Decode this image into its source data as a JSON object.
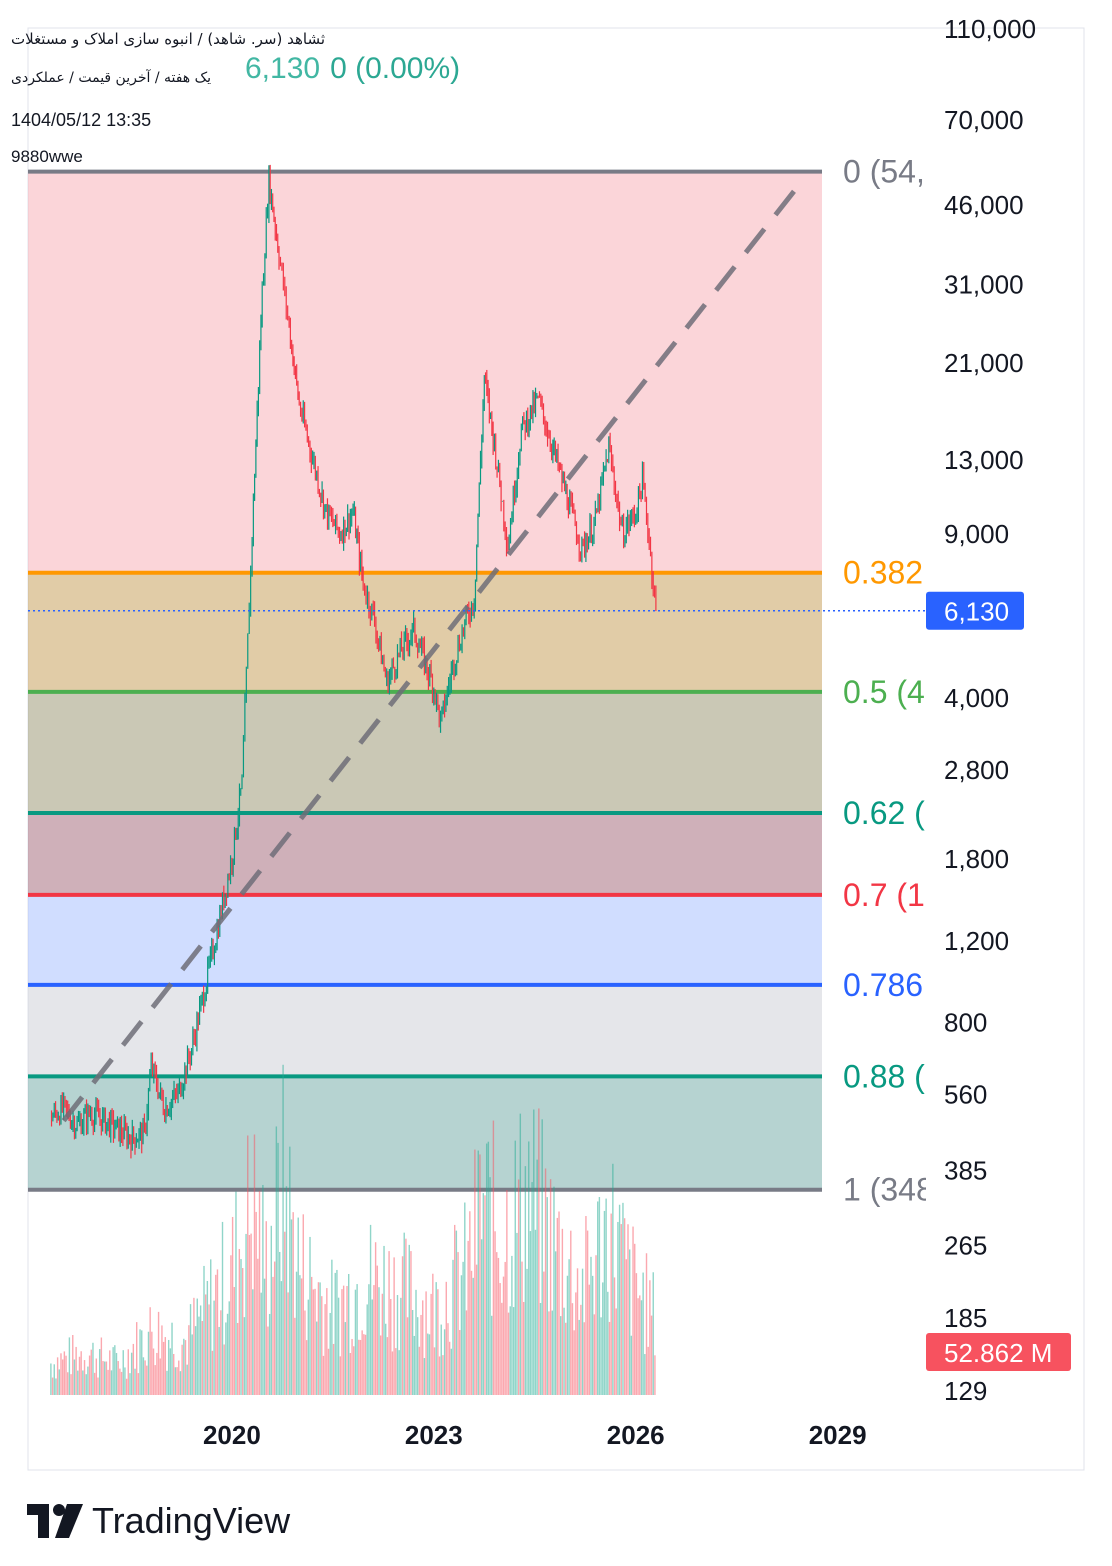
{
  "header": {
    "line1": "ثشاهد (سر. شاهد) / انبوه سازی املاک و مستغلات",
    "line2": "یک هفته / آخرین قیمت / عملکردی",
    "line3": "1404/05/12 13:35",
    "line4": "9880wwe",
    "price": "6,130",
    "change": "0 (0.00%)"
  },
  "colors": {
    "fib_0": "#787b86",
    "fib_0382": "#ff9800",
    "fib_05": "#4caf50",
    "fib_062": "#089981",
    "fib_07": "#f23645",
    "fib_0786": "#2962ff",
    "fib_088": "#089981",
    "fib_1": "#787b86",
    "up": "#089981",
    "down": "#f23645",
    "last_price_bg": "#2962ff",
    "volume_bg": "#f7525f"
  },
  "chart_data": {
    "type": "candlestick",
    "scale": "log",
    "x_ticks": [
      "2020",
      "2023",
      "2026",
      "2029"
    ],
    "y_ticks": [
      "110,000",
      "70,000",
      "46,000",
      "31,000",
      "21,000",
      "13,000",
      "9,000",
      "4,000",
      "2,800",
      "1,800",
      "1,200",
      "800",
      "560",
      "385",
      "265",
      "185",
      "129"
    ],
    "y_tick_values": [
      110000,
      70000,
      46000,
      31000,
      21000,
      13000,
      9000,
      4000,
      2800,
      1800,
      1200,
      800,
      560,
      385,
      265,
      185,
      129
    ],
    "last_price": 6130,
    "last_price_label": "6,130",
    "volume_label": "52.862 M",
    "fib_levels": [
      {
        "ratio": 0,
        "label": "0 (54,",
        "price": 54000
      },
      {
        "ratio": 0.382,
        "label": "0.382",
        "price": 7400
      },
      {
        "ratio": 0.5,
        "label": "0.5 (4",
        "price": 4100
      },
      {
        "ratio": 0.62,
        "label": "0.62 (",
        "price": 2250
      },
      {
        "ratio": 0.7,
        "label": "0.7 (1",
        "price": 1500
      },
      {
        "ratio": 0.786,
        "label": "0.786",
        "price": 960
      },
      {
        "ratio": 0.88,
        "label": "0.88 (",
        "price": 610
      },
      {
        "ratio": 1,
        "label": "1 (348",
        "price": 348
      }
    ],
    "trendline": {
      "from": {
        "date": "2017.5",
        "price": 490
      },
      "to": {
        "date": "2028.4",
        "price": 50000
      }
    },
    "price_series": [
      [
        2017.3,
        500
      ],
      [
        2017.5,
        520
      ],
      [
        2017.7,
        480
      ],
      [
        2017.9,
        510
      ],
      [
        2018.1,
        490
      ],
      [
        2018.3,
        470
      ],
      [
        2018.5,
        450
      ],
      [
        2018.7,
        460
      ],
      [
        2018.8,
        640
      ],
      [
        2019.0,
        520
      ],
      [
        2019.2,
        560
      ],
      [
        2019.4,
        700
      ],
      [
        2019.6,
        950
      ],
      [
        2019.8,
        1300
      ],
      [
        2020.0,
        1800
      ],
      [
        2020.15,
        2600
      ],
      [
        2020.3,
        9000
      ],
      [
        2020.45,
        30000
      ],
      [
        2020.55,
        52000
      ],
      [
        2020.7,
        36000
      ],
      [
        2020.85,
        25000
      ],
      [
        2021.0,
        17000
      ],
      [
        2021.2,
        13000
      ],
      [
        2021.4,
        10000
      ],
      [
        2021.6,
        9000
      ],
      [
        2021.8,
        10000
      ],
      [
        2021.95,
        7000
      ],
      [
        2022.1,
        6000
      ],
      [
        2022.3,
        4300
      ],
      [
        2022.5,
        5000
      ],
      [
        2022.7,
        5600
      ],
      [
        2022.9,
        4600
      ],
      [
        2023.0,
        4200
      ],
      [
        2023.1,
        3500
      ],
      [
        2023.3,
        4800
      ],
      [
        2023.5,
        6000
      ],
      [
        2023.6,
        6500
      ],
      [
        2023.75,
        19500
      ],
      [
        2023.9,
        14000
      ],
      [
        2024.1,
        8500
      ],
      [
        2024.3,
        15000
      ],
      [
        2024.55,
        17500
      ],
      [
        2024.75,
        14000
      ],
      [
        2025.0,
        10500
      ],
      [
        2025.2,
        8300
      ],
      [
        2025.4,
        9600
      ],
      [
        2025.6,
        13800
      ],
      [
        2025.8,
        9000
      ],
      [
        2026.0,
        10000
      ],
      [
        2026.1,
        11700
      ],
      [
        2026.2,
        8700
      ],
      [
        2026.3,
        6130
      ]
    ],
    "volume_series": [
      [
        2017.3,
        0.15
      ],
      [
        2017.8,
        0.2
      ],
      [
        2018.3,
        0.15
      ],
      [
        2018.8,
        0.3
      ],
      [
        2019.3,
        0.25
      ],
      [
        2019.8,
        0.5
      ],
      [
        2020.0,
        0.6
      ],
      [
        2020.3,
        0.9
      ],
      [
        2020.5,
        0.6
      ],
      [
        2020.75,
        1.0
      ],
      [
        2021.0,
        0.6
      ],
      [
        2021.5,
        0.4
      ],
      [
        2022.0,
        0.55
      ],
      [
        2022.5,
        0.5
      ],
      [
        2023.0,
        0.4
      ],
      [
        2023.5,
        0.6
      ],
      [
        2023.7,
        0.9
      ],
      [
        2024.0,
        0.75
      ],
      [
        2024.4,
        0.95
      ],
      [
        2024.8,
        0.7
      ],
      [
        2025.2,
        0.5
      ],
      [
        2025.6,
        0.8
      ],
      [
        2025.9,
        0.55
      ],
      [
        2026.2,
        0.4
      ],
      [
        2026.3,
        0.35
      ]
    ]
  },
  "branding": {
    "logo_text": "TradingView"
  }
}
